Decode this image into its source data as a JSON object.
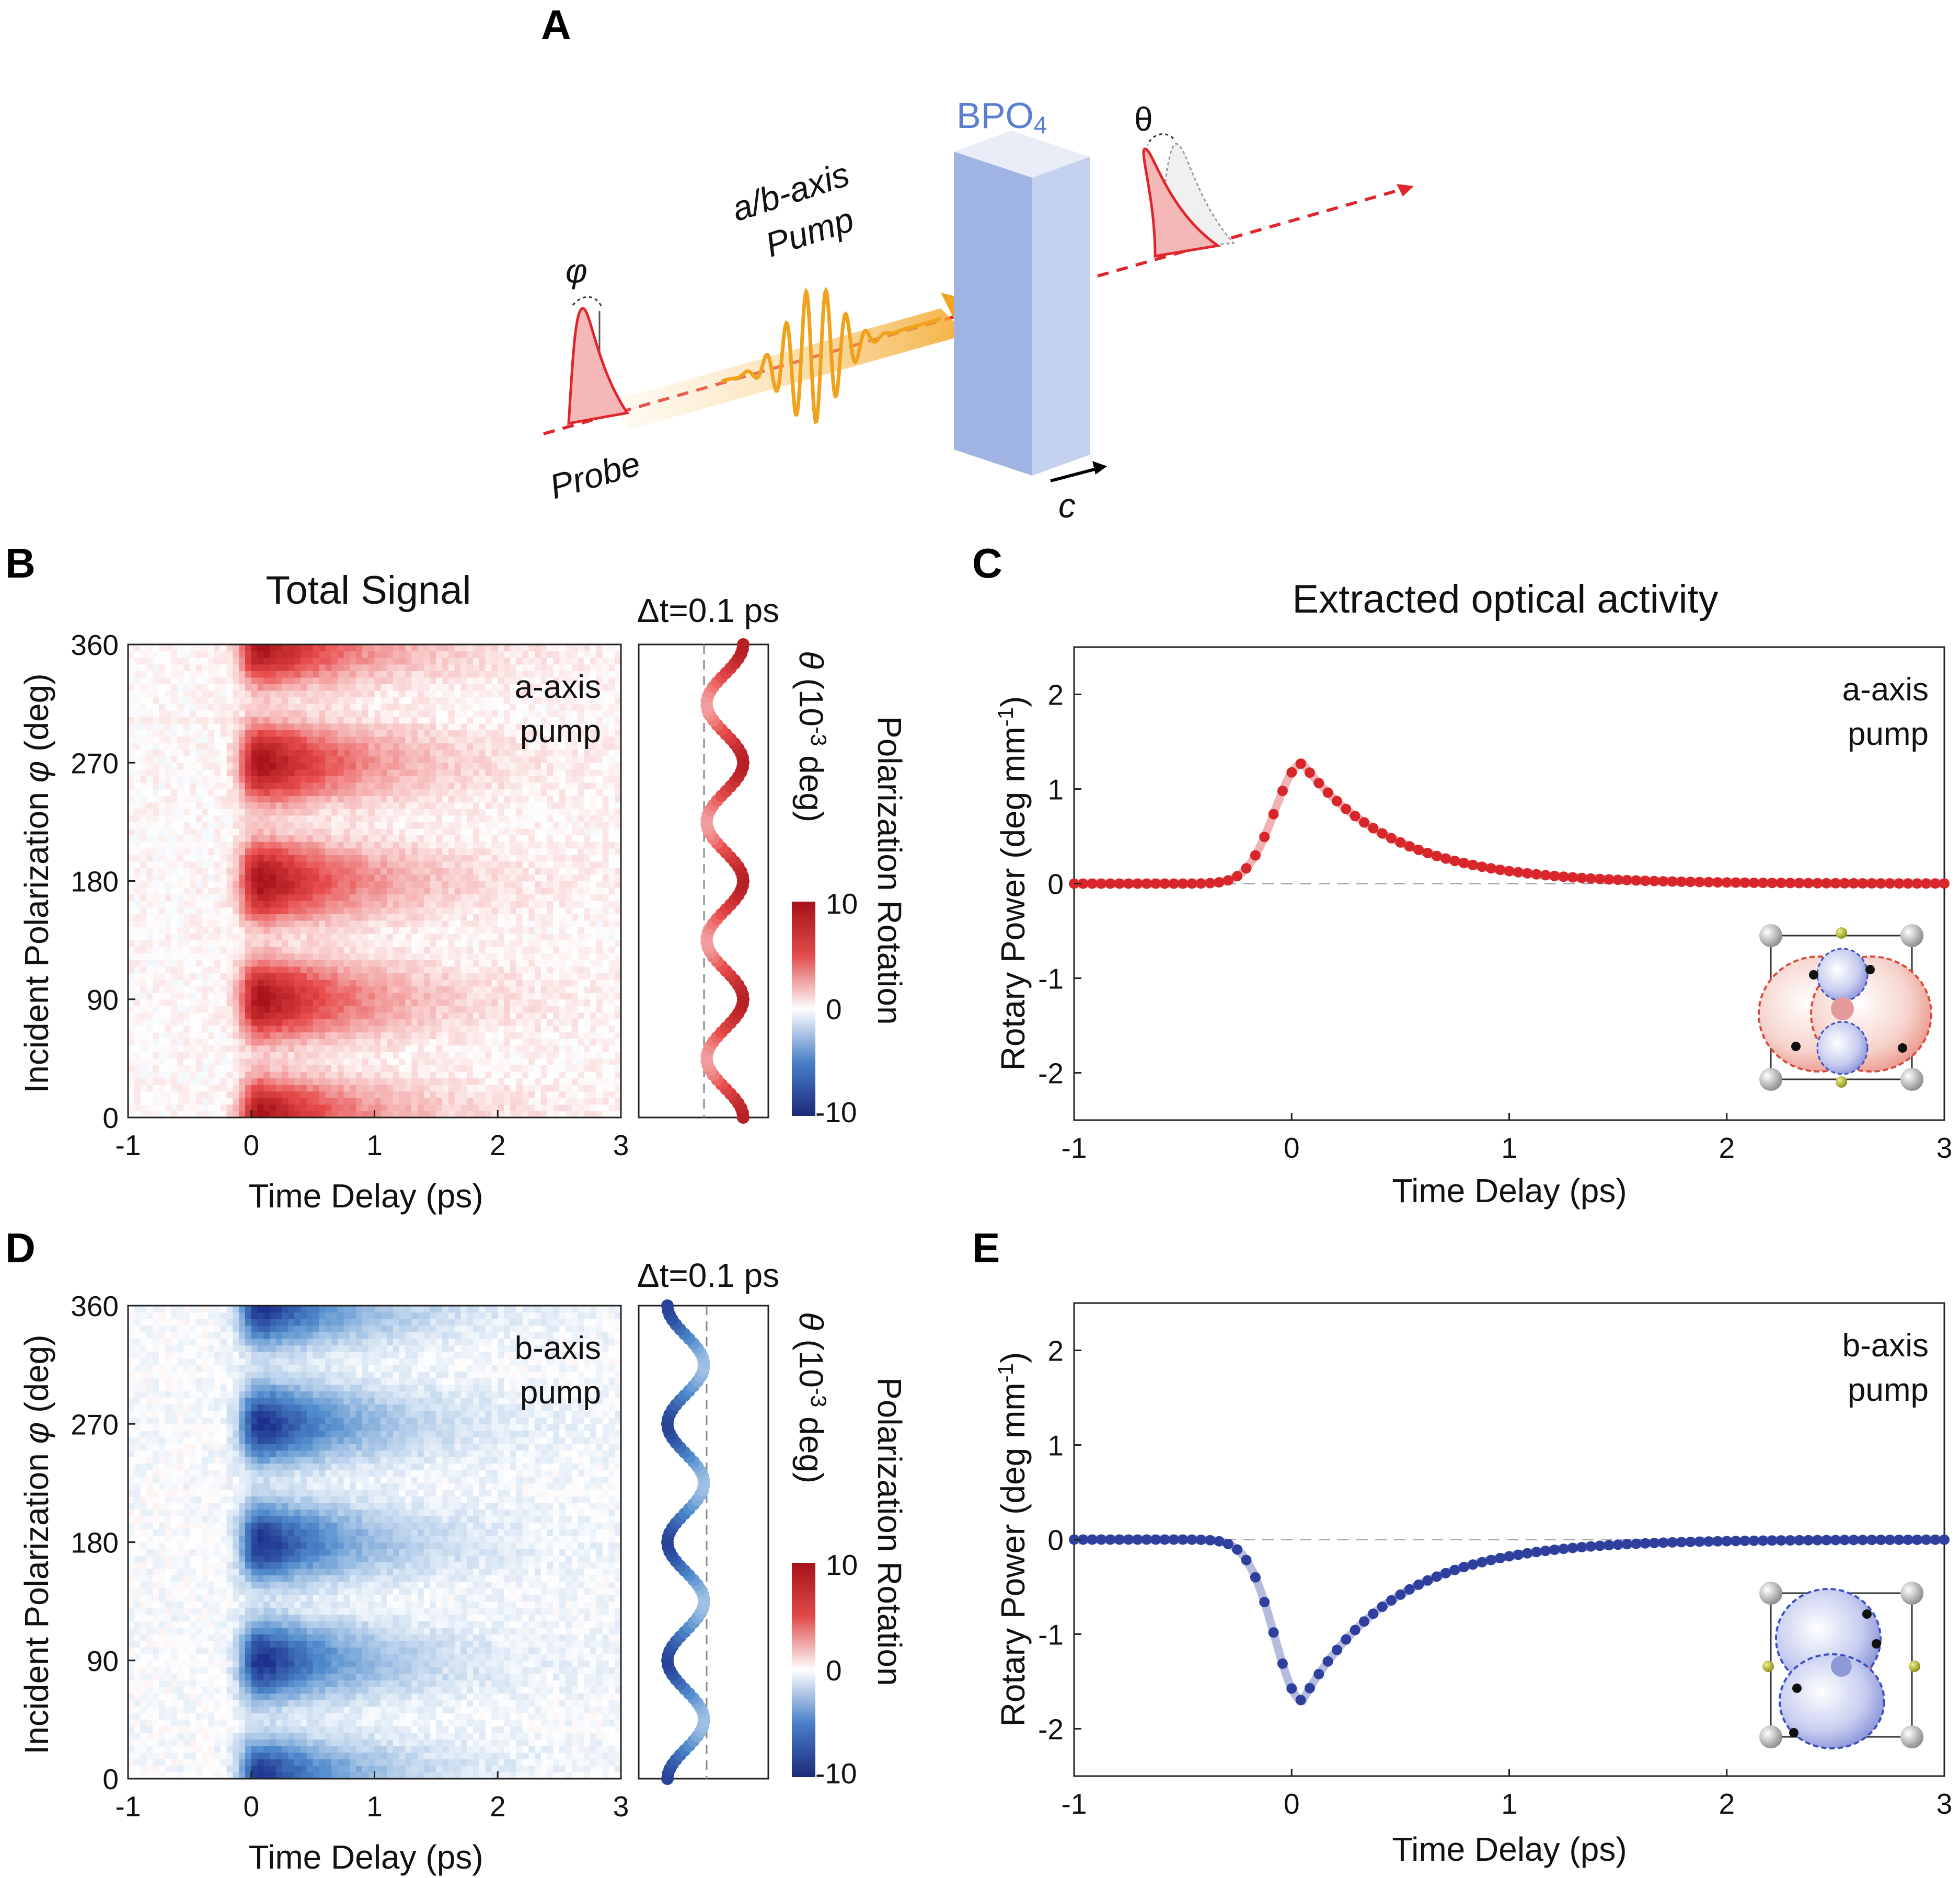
{
  "panels": {
    "A": "A",
    "B": "B",
    "C": "C",
    "D": "D",
    "E": "E"
  },
  "schematic": {
    "crystal_label": "BPO",
    "crystal_sub": "4",
    "pump_label_1": "a/b-axis",
    "pump_label_2": "Pump",
    "probe_label": "Probe",
    "phi_symbol": "φ",
    "theta_symbol": "θ",
    "c_axis": "c",
    "colors": {
      "probe": "#e0262c",
      "pump": "#f0a21c",
      "crystal": "#9fb4e2"
    }
  },
  "heatmap_titles": {
    "total_signal": "Total Signal",
    "dt_label": "Δt=0.1 ps"
  },
  "heatmap_axes": {
    "ylabel_pre": "Incident Polarization ",
    "ylabel_sym": "φ",
    "ylabel_post": " (deg)",
    "xlabel": "Time Delay (ps)",
    "xticks": [
      "-1",
      "0",
      "1",
      "2",
      "3"
    ],
    "yticks": [
      "0",
      "90",
      "180",
      "270",
      "360"
    ]
  },
  "side_axis": {
    "theta": "θ",
    "unit_a": " (10",
    "unit_exp": "-3",
    "unit_b": " deg)",
    "colorbar_title": "Polarization Rotation"
  },
  "colorbar": {
    "ticks": [
      "10",
      "0",
      "-10"
    ],
    "max": 10,
    "min": -10,
    "colors": [
      "#1b2a7a",
      "#ffffff",
      "#a51218"
    ]
  },
  "annotations": {
    "a_pump_1": "a-axis",
    "a_pump_2": "pump",
    "b_pump_1": "b-axis",
    "b_pump_2": "pump"
  },
  "line_titles": {
    "extracted": "Extracted optical activity"
  },
  "line_axes": {
    "ylabel": "Rotary Power (deg mm",
    "ylabel_exp": "-1",
    "ylabel_end": ")",
    "xlabel": "Time Delay (ps)",
    "xticks": [
      "-1",
      "0",
      "1",
      "2",
      "3"
    ],
    "yticks": [
      "-2",
      "-1",
      "0",
      "1",
      "2"
    ]
  },
  "chart_data": [
    {
      "type": "heatmap",
      "panel": "B",
      "xlabel": "Time Delay (ps)",
      "ylabel": "Incident Polarization φ (deg)",
      "xlim": [
        -1,
        3
      ],
      "ylim": [
        0,
        360
      ],
      "peaks_deg": [
        0,
        90,
        180,
        270,
        360
      ],
      "sign": 1,
      "peak_value": 10
    },
    {
      "type": "heatmap",
      "panel": "D",
      "xlabel": "Time Delay (ps)",
      "ylabel": "Incident Polarization φ (deg)",
      "xlim": [
        -1,
        3
      ],
      "ylim": [
        0,
        360
      ],
      "peaks_deg": [
        0,
        90,
        180,
        270,
        360
      ],
      "sign": -1,
      "peak_value": -10
    },
    {
      "type": "line",
      "panel": "C",
      "title": "Extracted optical activity",
      "xlabel": "Time Delay (ps)",
      "ylabel": "Rotary Power (deg mm-1)",
      "xlim": [
        -1,
        3
      ],
      "ylim": [
        -2.5,
        2.5
      ],
      "series": [
        {
          "color": "#d8262a",
          "peak": 1.27,
          "peak_x": 0.05
        }
      ]
    },
    {
      "type": "line",
      "panel": "E",
      "xlabel": "Time Delay (ps)",
      "ylabel": "Rotary Power (deg mm-1)",
      "xlim": [
        -1,
        3
      ],
      "ylim": [
        -2.5,
        2.5
      ],
      "series": [
        {
          "color": "#2e3f9e",
          "peak": -1.7,
          "peak_x": 0.05
        }
      ]
    }
  ]
}
